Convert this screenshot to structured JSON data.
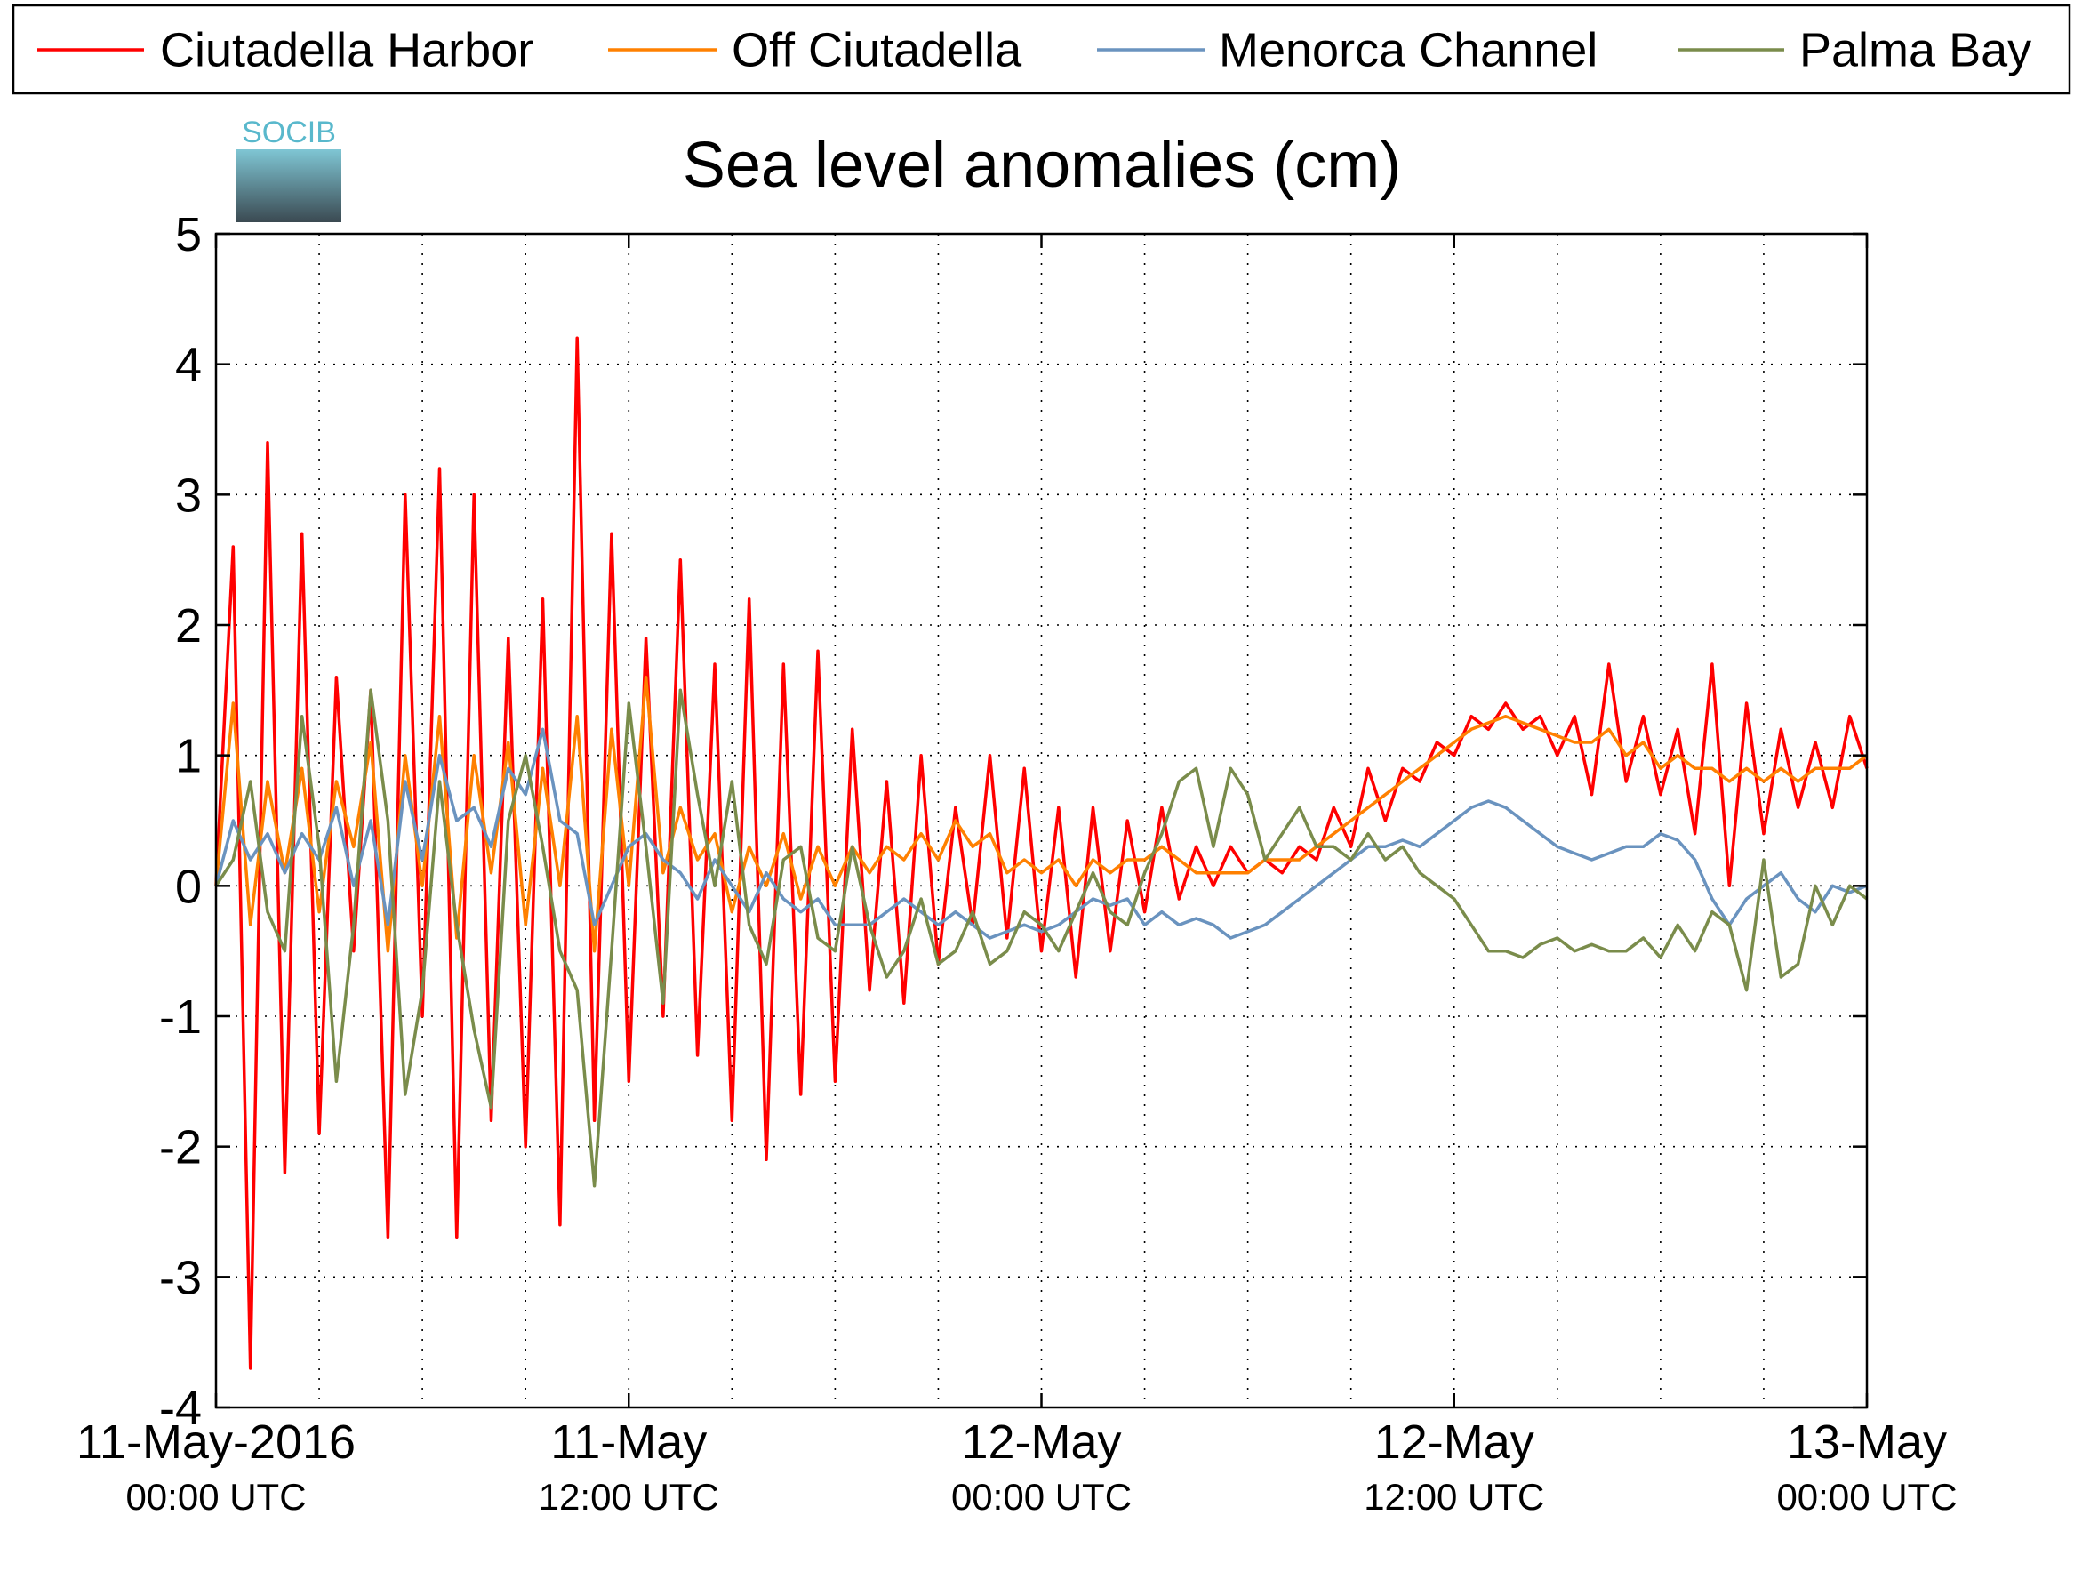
{
  "chart_data": {
    "type": "line",
    "title": "Sea level anomalies (cm)",
    "logo_text": "SOCIB",
    "x": [
      0,
      0.5,
      1,
      1.5,
      2,
      2.5,
      3,
      3.5,
      4,
      4.5,
      5,
      5.5,
      6,
      6.5,
      7,
      7.5,
      8,
      8.5,
      9,
      9.5,
      10,
      10.5,
      11,
      11.5,
      12,
      12.5,
      13,
      13.5,
      14,
      14.5,
      15,
      15.5,
      16,
      16.5,
      17,
      17.5,
      18,
      18.5,
      19,
      19.5,
      20,
      20.5,
      21,
      21.5,
      22,
      22.5,
      23,
      23.5,
      24,
      24.5,
      25,
      25.5,
      26,
      26.5,
      27,
      27.5,
      28,
      28.5,
      29,
      29.5,
      30,
      30.5,
      31,
      31.5,
      32,
      32.5,
      33,
      33.5,
      34,
      34.5,
      35,
      35.5,
      36,
      36.5,
      37,
      37.5,
      38,
      38.5,
      39,
      39.5,
      40,
      40.5,
      41,
      41.5,
      42,
      42.5,
      43,
      43.5,
      44,
      44.5,
      45,
      45.5,
      46,
      46.5,
      47,
      47.5,
      48
    ],
    "xlim": [
      0,
      48
    ],
    "xticks": [
      {
        "value": 0,
        "label": [
          "11-May-2016",
          "00:00 UTC"
        ]
      },
      {
        "value": 12,
        "label": [
          "11-May",
          "12:00 UTC"
        ]
      },
      {
        "value": 24,
        "label": [
          "12-May",
          "00:00 UTC"
        ]
      },
      {
        "value": 36,
        "label": [
          "12-May",
          "12:00 UTC"
        ]
      },
      {
        "value": 48,
        "label": [
          "13-May",
          "00:00 UTC"
        ]
      }
    ],
    "xgrid": [
      3,
      6,
      9,
      12,
      15,
      18,
      21,
      24,
      27,
      30,
      33,
      36,
      39,
      42,
      45
    ],
    "ylim": [
      -4,
      5
    ],
    "yticks": [
      -4,
      -3,
      -2,
      -1,
      0,
      1,
      2,
      3,
      4,
      5
    ],
    "grid": true,
    "legend": "top",
    "series": [
      {
        "name": "Ciutadella Harbor",
        "color": "#ff0000",
        "values": [
          0,
          2.6,
          -3.7,
          3.4,
          -2.2,
          2.7,
          -1.9,
          1.6,
          -0.5,
          1.5,
          -2.7,
          3.0,
          -1.0,
          3.2,
          -2.7,
          3.0,
          -1.8,
          1.9,
          -2.0,
          2.2,
          -2.6,
          4.2,
          -1.8,
          2.7,
          -1.5,
          1.9,
          -1.0,
          2.5,
          -1.3,
          1.7,
          -1.8,
          2.2,
          -2.1,
          1.7,
          -1.6,
          1.8,
          -1.5,
          1.2,
          -0.8,
          0.8,
          -0.9,
          1.0,
          -0.6,
          0.6,
          -0.3,
          1.0,
          -0.4,
          0.9,
          -0.5,
          0.6,
          -0.7,
          0.6,
          -0.5,
          0.5,
          -0.2,
          0.6,
          -0.1,
          0.3,
          0.0,
          0.3,
          0.1,
          0.2,
          0.1,
          0.3,
          0.2,
          0.6,
          0.3,
          0.9,
          0.5,
          0.9,
          0.8,
          1.1,
          1.0,
          1.3,
          1.2,
          1.4,
          1.2,
          1.3,
          1.0,
          1.3,
          0.7,
          1.7,
          0.8,
          1.3,
          0.7,
          1.2,
          0.4,
          1.7,
          0.0,
          1.4,
          0.4,
          1.2,
          0.6,
          1.1,
          0.6,
          1.3,
          0.9
        ]
      },
      {
        "name": "Off Ciutadella",
        "color": "#ff8000",
        "values": [
          0,
          1.4,
          -0.3,
          0.8,
          0.1,
          0.9,
          -0.2,
          0.8,
          0.3,
          1.1,
          -0.5,
          1.0,
          0.0,
          1.3,
          -0.4,
          1.0,
          0.1,
          1.1,
          -0.3,
          0.9,
          0.0,
          1.3,
          -0.5,
          1.2,
          0.0,
          1.6,
          0.1,
          0.6,
          0.2,
          0.4,
          -0.2,
          0.3,
          0.0,
          0.4,
          -0.1,
          0.3,
          0.0,
          0.3,
          0.1,
          0.3,
          0.2,
          0.4,
          0.2,
          0.5,
          0.3,
          0.4,
          0.1,
          0.2,
          0.1,
          0.2,
          0.0,
          0.2,
          0.1,
          0.2,
          0.2,
          0.3,
          0.2,
          0.1,
          0.1,
          0.1,
          0.1,
          0.2,
          0.2,
          0.2,
          0.3,
          0.4,
          0.5,
          0.6,
          0.7,
          0.8,
          0.9,
          1.0,
          1.1,
          1.2,
          1.25,
          1.3,
          1.25,
          1.2,
          1.15,
          1.1,
          1.1,
          1.2,
          1.0,
          1.1,
          0.9,
          1.0,
          0.9,
          0.9,
          0.8,
          0.9,
          0.8,
          0.9,
          0.8,
          0.9,
          0.9,
          0.9,
          1.0
        ]
      },
      {
        "name": "Menorca Channel",
        "color": "#6a93bf",
        "values": [
          0,
          0.5,
          0.2,
          0.4,
          0.1,
          0.4,
          0.2,
          0.6,
          0.0,
          0.5,
          -0.3,
          0.8,
          0.2,
          1.0,
          0.5,
          0.6,
          0.3,
          0.9,
          0.7,
          1.2,
          0.5,
          0.4,
          -0.3,
          0.0,
          0.3,
          0.4,
          0.2,
          0.1,
          -0.1,
          0.2,
          0.0,
          -0.2,
          0.1,
          -0.1,
          -0.2,
          -0.1,
          -0.3,
          -0.3,
          -0.3,
          -0.2,
          -0.1,
          -0.2,
          -0.3,
          -0.2,
          -0.3,
          -0.4,
          -0.35,
          -0.3,
          -0.35,
          -0.3,
          -0.2,
          -0.1,
          -0.15,
          -0.1,
          -0.3,
          -0.2,
          -0.3,
          -0.25,
          -0.3,
          -0.4,
          -0.35,
          -0.3,
          -0.2,
          -0.1,
          0.0,
          0.1,
          0.2,
          0.3,
          0.3,
          0.35,
          0.3,
          0.4,
          0.5,
          0.6,
          0.65,
          0.6,
          0.5,
          0.4,
          0.3,
          0.25,
          0.2,
          0.25,
          0.3,
          0.3,
          0.4,
          0.35,
          0.2,
          -0.1,
          -0.3,
          -0.1,
          0.0,
          0.1,
          -0.1,
          -0.2,
          0.0,
          -0.05,
          0.0
        ]
      },
      {
        "name": "Palma Bay",
        "color": "#7a8c4b",
        "values": [
          0,
          0.2,
          0.8,
          -0.2,
          -0.5,
          1.3,
          0.3,
          -1.5,
          -0.3,
          1.5,
          0.5,
          -1.6,
          -0.8,
          0.8,
          -0.3,
          -1.1,
          -1.7,
          0.5,
          1.0,
          0.3,
          -0.5,
          -0.8,
          -2.3,
          -0.5,
          1.4,
          0.3,
          -0.9,
          1.5,
          0.7,
          0.0,
          0.8,
          -0.3,
          -0.6,
          0.2,
          0.3,
          -0.4,
          -0.5,
          0.3,
          -0.3,
          -0.7,
          -0.5,
          -0.1,
          -0.6,
          -0.5,
          -0.2,
          -0.6,
          -0.5,
          -0.2,
          -0.3,
          -0.5,
          -0.2,
          0.1,
          -0.2,
          -0.3,
          0.1,
          0.4,
          0.8,
          0.9,
          0.3,
          0.9,
          0.7,
          0.2,
          0.4,
          0.6,
          0.3,
          0.3,
          0.2,
          0.4,
          0.2,
          0.3,
          0.1,
          0.0,
          -0.1,
          -0.3,
          -0.5,
          -0.5,
          -0.55,
          -0.45,
          -0.4,
          -0.5,
          -0.45,
          -0.5,
          -0.5,
          -0.4,
          -0.55,
          -0.3,
          -0.5,
          -0.2,
          -0.3,
          -0.8,
          0.2,
          -0.7,
          -0.6,
          0.0,
          -0.3,
          0.0,
          -0.1
        ]
      }
    ]
  }
}
